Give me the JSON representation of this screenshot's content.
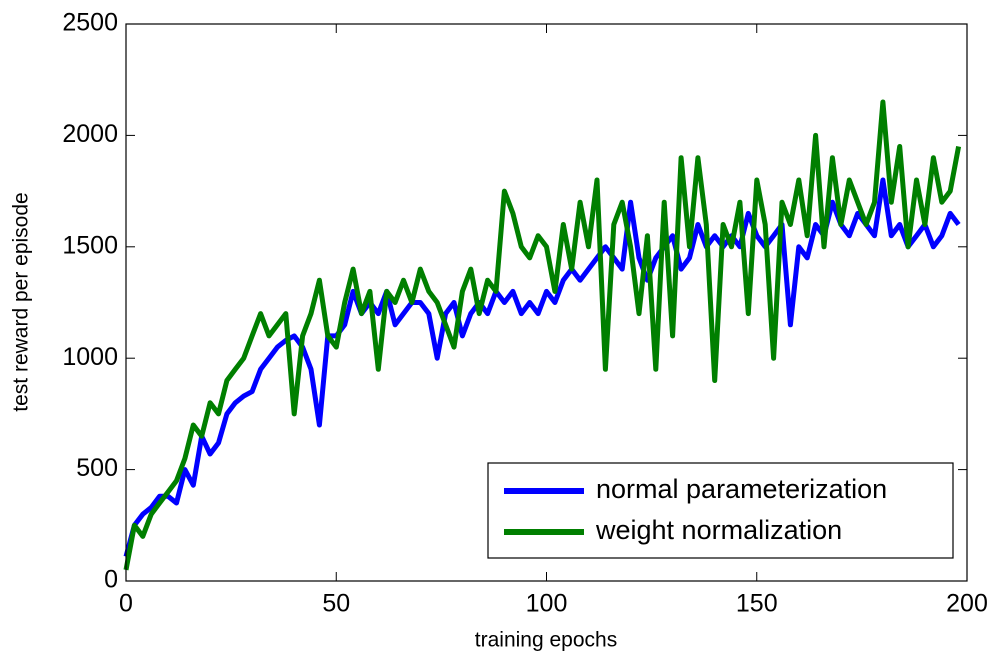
{
  "chart_data": {
    "type": "line",
    "xlabel": "training epochs",
    "ylabel": "test reward per episode",
    "x": [
      0,
      2,
      4,
      6,
      8,
      10,
      12,
      14,
      16,
      18,
      20,
      22,
      24,
      26,
      28,
      30,
      32,
      34,
      36,
      38,
      40,
      42,
      44,
      46,
      48,
      50,
      52,
      54,
      56,
      58,
      60,
      62,
      64,
      66,
      68,
      70,
      72,
      74,
      76,
      78,
      80,
      82,
      84,
      86,
      88,
      90,
      92,
      94,
      96,
      98,
      100,
      102,
      104,
      106,
      108,
      110,
      112,
      114,
      116,
      118,
      120,
      122,
      124,
      126,
      128,
      130,
      132,
      134,
      136,
      138,
      140,
      142,
      144,
      146,
      148,
      150,
      152,
      154,
      156,
      158,
      160,
      162,
      164,
      166,
      168,
      170,
      172,
      174,
      176,
      178,
      180,
      182,
      184,
      186,
      188,
      190,
      192,
      194,
      196,
      198
    ],
    "series": [
      {
        "name": "normal parameterization",
        "color": "#0000ff",
        "values": [
          110,
          250,
          300,
          330,
          380,
          380,
          350,
          500,
          430,
          650,
          570,
          620,
          750,
          800,
          830,
          850,
          950,
          1000,
          1050,
          1080,
          1100,
          1050,
          950,
          700,
          1100,
          1100,
          1150,
          1300,
          1200,
          1250,
          1200,
          1300,
          1150,
          1200,
          1250,
          1250,
          1200,
          1000,
          1200,
          1250,
          1100,
          1200,
          1250,
          1200,
          1300,
          1250,
          1300,
          1200,
          1250,
          1200,
          1300,
          1250,
          1350,
          1400,
          1350,
          1400,
          1450,
          1500,
          1450,
          1400,
          1700,
          1450,
          1350,
          1450,
          1500,
          1550,
          1400,
          1450,
          1600,
          1500,
          1550,
          1500,
          1550,
          1500,
          1650,
          1550,
          1500,
          1550,
          1600,
          1150,
          1500,
          1450,
          1600,
          1550,
          1700,
          1600,
          1550,
          1650,
          1600,
          1550,
          1800,
          1550,
          1600,
          1500,
          1550,
          1600,
          1500,
          1550,
          1650,
          1600
        ]
      },
      {
        "name": "weight normalization",
        "color": "#007f00",
        "values": [
          50,
          250,
          200,
          300,
          350,
          400,
          450,
          550,
          700,
          650,
          800,
          750,
          900,
          950,
          1000,
          1100,
          1200,
          1100,
          1150,
          1200,
          750,
          1100,
          1200,
          1350,
          1100,
          1050,
          1250,
          1400,
          1200,
          1300,
          950,
          1300,
          1250,
          1350,
          1250,
          1400,
          1300,
          1250,
          1150,
          1050,
          1300,
          1400,
          1200,
          1350,
          1300,
          1750,
          1650,
          1500,
          1450,
          1550,
          1500,
          1300,
          1600,
          1400,
          1700,
          1500,
          1800,
          950,
          1600,
          1700,
          1500,
          1200,
          1550,
          950,
          1700,
          1100,
          1900,
          1500,
          1900,
          1600,
          900,
          1600,
          1500,
          1700,
          1200,
          1800,
          1600,
          1000,
          1700,
          1600,
          1800,
          1550,
          2000,
          1500,
          1900,
          1600,
          1800,
          1700,
          1600,
          1700,
          2150,
          1700,
          1950,
          1500,
          1800,
          1600,
          1900,
          1700,
          1750,
          1950
        ]
      }
    ],
    "xlim": [
      0,
      200
    ],
    "xticks": [
      0,
      50,
      100,
      150,
      200
    ],
    "ylim": [
      0,
      2500
    ],
    "yticks": [
      0,
      500,
      1000,
      1500,
      2000,
      2500
    ],
    "grid": false,
    "legend": "lower right"
  }
}
